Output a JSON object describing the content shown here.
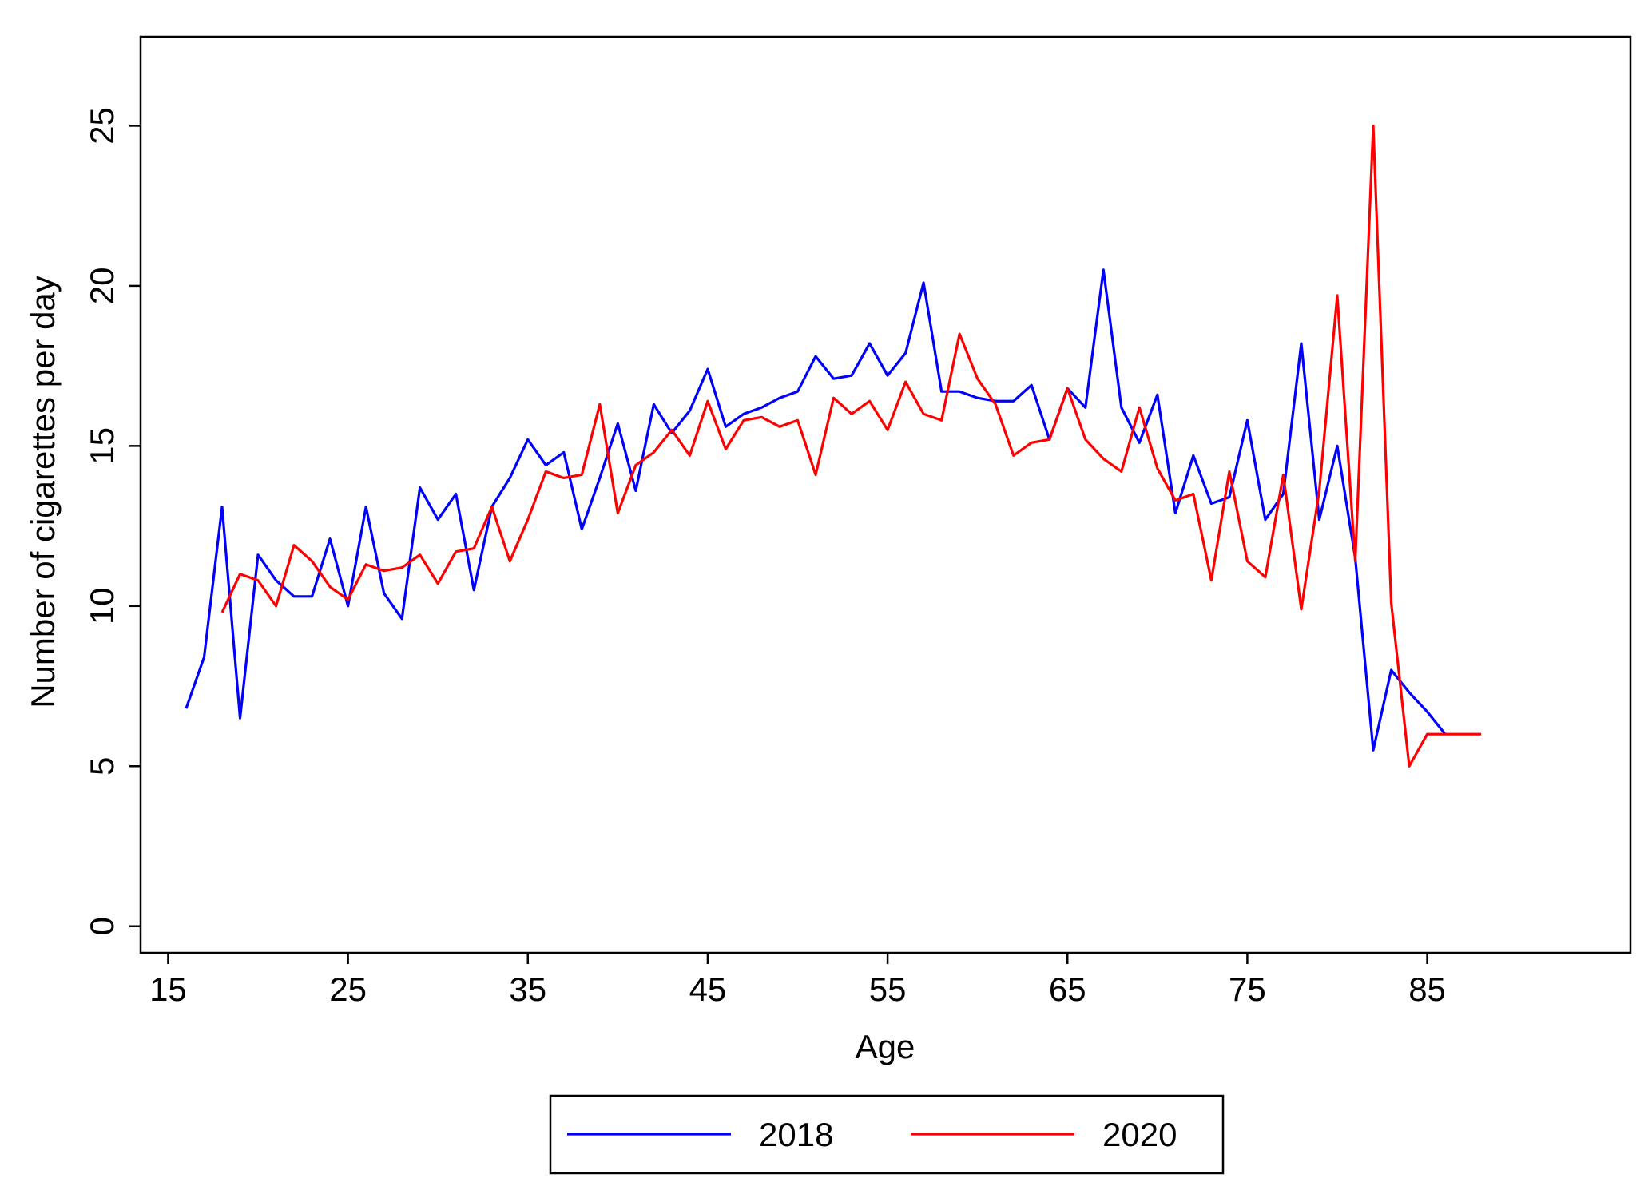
{
  "chart_data": {
    "type": "line",
    "x_label": "Age",
    "y_label": "Number of cigarettes per day",
    "x": [
      16,
      17,
      18,
      19,
      20,
      21,
      22,
      23,
      24,
      25,
      26,
      27,
      28,
      29,
      30,
      31,
      32,
      33,
      34,
      35,
      36,
      37,
      38,
      39,
      40,
      41,
      42,
      43,
      44,
      45,
      46,
      47,
      48,
      49,
      50,
      51,
      52,
      53,
      54,
      55,
      56,
      57,
      58,
      59,
      60,
      61,
      62,
      63,
      64,
      65,
      66,
      67,
      68,
      69,
      70,
      71,
      72,
      73,
      74,
      75,
      76,
      77,
      78,
      79,
      80,
      81,
      82,
      83,
      84,
      85,
      86,
      87,
      88
    ],
    "series": [
      {
        "name": "2018",
        "color": "#0000ff",
        "values": [
          6.8,
          8.4,
          13.1,
          6.5,
          11.6,
          10.8,
          10.3,
          10.3,
          12.1,
          10.0,
          13.1,
          10.4,
          9.6,
          13.7,
          12.7,
          13.5,
          10.5,
          13.1,
          14.0,
          15.2,
          14.4,
          14.8,
          12.4,
          14.0,
          15.7,
          13.6,
          16.3,
          15.4,
          16.1,
          17.4,
          15.6,
          16.0,
          16.2,
          16.5,
          16.7,
          17.8,
          17.1,
          17.2,
          18.2,
          17.2,
          17.9,
          20.1,
          16.7,
          16.7,
          16.5,
          16.4,
          16.4,
          16.9,
          15.2,
          16.8,
          16.2,
          20.5,
          16.2,
          15.1,
          16.6,
          12.9,
          14.7,
          13.2,
          13.4,
          15.8,
          12.7,
          13.5,
          18.2,
          12.7,
          15.0,
          11.5,
          5.5,
          8.0,
          7.3,
          6.7,
          6.0,
          null,
          null
        ]
      },
      {
        "name": "2020",
        "color": "#ff0000",
        "values": [
          null,
          null,
          9.8,
          11.0,
          10.8,
          10.0,
          11.9,
          11.4,
          10.6,
          10.2,
          11.3,
          11.1,
          11.2,
          11.6,
          10.7,
          11.7,
          11.8,
          13.1,
          11.4,
          12.7,
          14.2,
          14.0,
          14.1,
          16.3,
          12.9,
          14.4,
          14.8,
          15.5,
          14.7,
          16.4,
          14.9,
          15.8,
          15.9,
          15.6,
          15.8,
          14.1,
          16.5,
          16.0,
          16.4,
          15.5,
          17.0,
          16.0,
          15.8,
          18.5,
          17.1,
          16.3,
          14.7,
          15.1,
          15.2,
          16.8,
          15.2,
          14.6,
          14.2,
          16.2,
          14.3,
          13.3,
          13.5,
          10.8,
          14.2,
          11.4,
          10.9,
          14.1,
          9.9,
          13.6,
          19.7,
          11.4,
          25.0,
          10.1,
          5.0,
          6.0,
          6.0,
          6.0,
          6.0
        ]
      }
    ],
    "xlim": [
      13.47,
      96.3
    ],
    "xticks": [
      15,
      25,
      35,
      45,
      55,
      65,
      75,
      85
    ],
    "ylim": [
      -0.83,
      27.78
    ],
    "yticks": [
      0,
      5,
      10,
      15,
      20,
      25
    ],
    "legend": "bottom"
  }
}
